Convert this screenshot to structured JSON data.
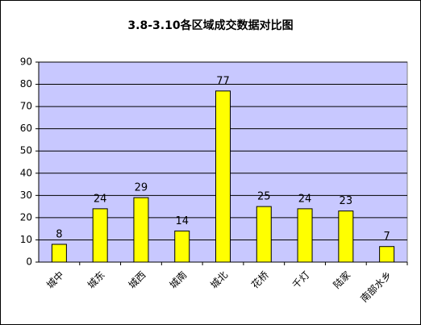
{
  "chart_data": {
    "type": "bar",
    "title": "3.8-3.10各区域成交数据对比图",
    "categories": [
      "城中",
      "城东",
      "城西",
      "城南",
      "城北",
      "花桥",
      "千灯",
      "陆家",
      "南部水乡"
    ],
    "values": [
      8,
      24,
      29,
      14,
      77,
      25,
      24,
      23,
      7
    ],
    "color": "#ffff00",
    "ylim": [
      0,
      90
    ],
    "yticks": [
      0,
      10,
      20,
      30,
      40,
      50,
      60,
      70,
      80,
      90
    ],
    "grid": true
  }
}
